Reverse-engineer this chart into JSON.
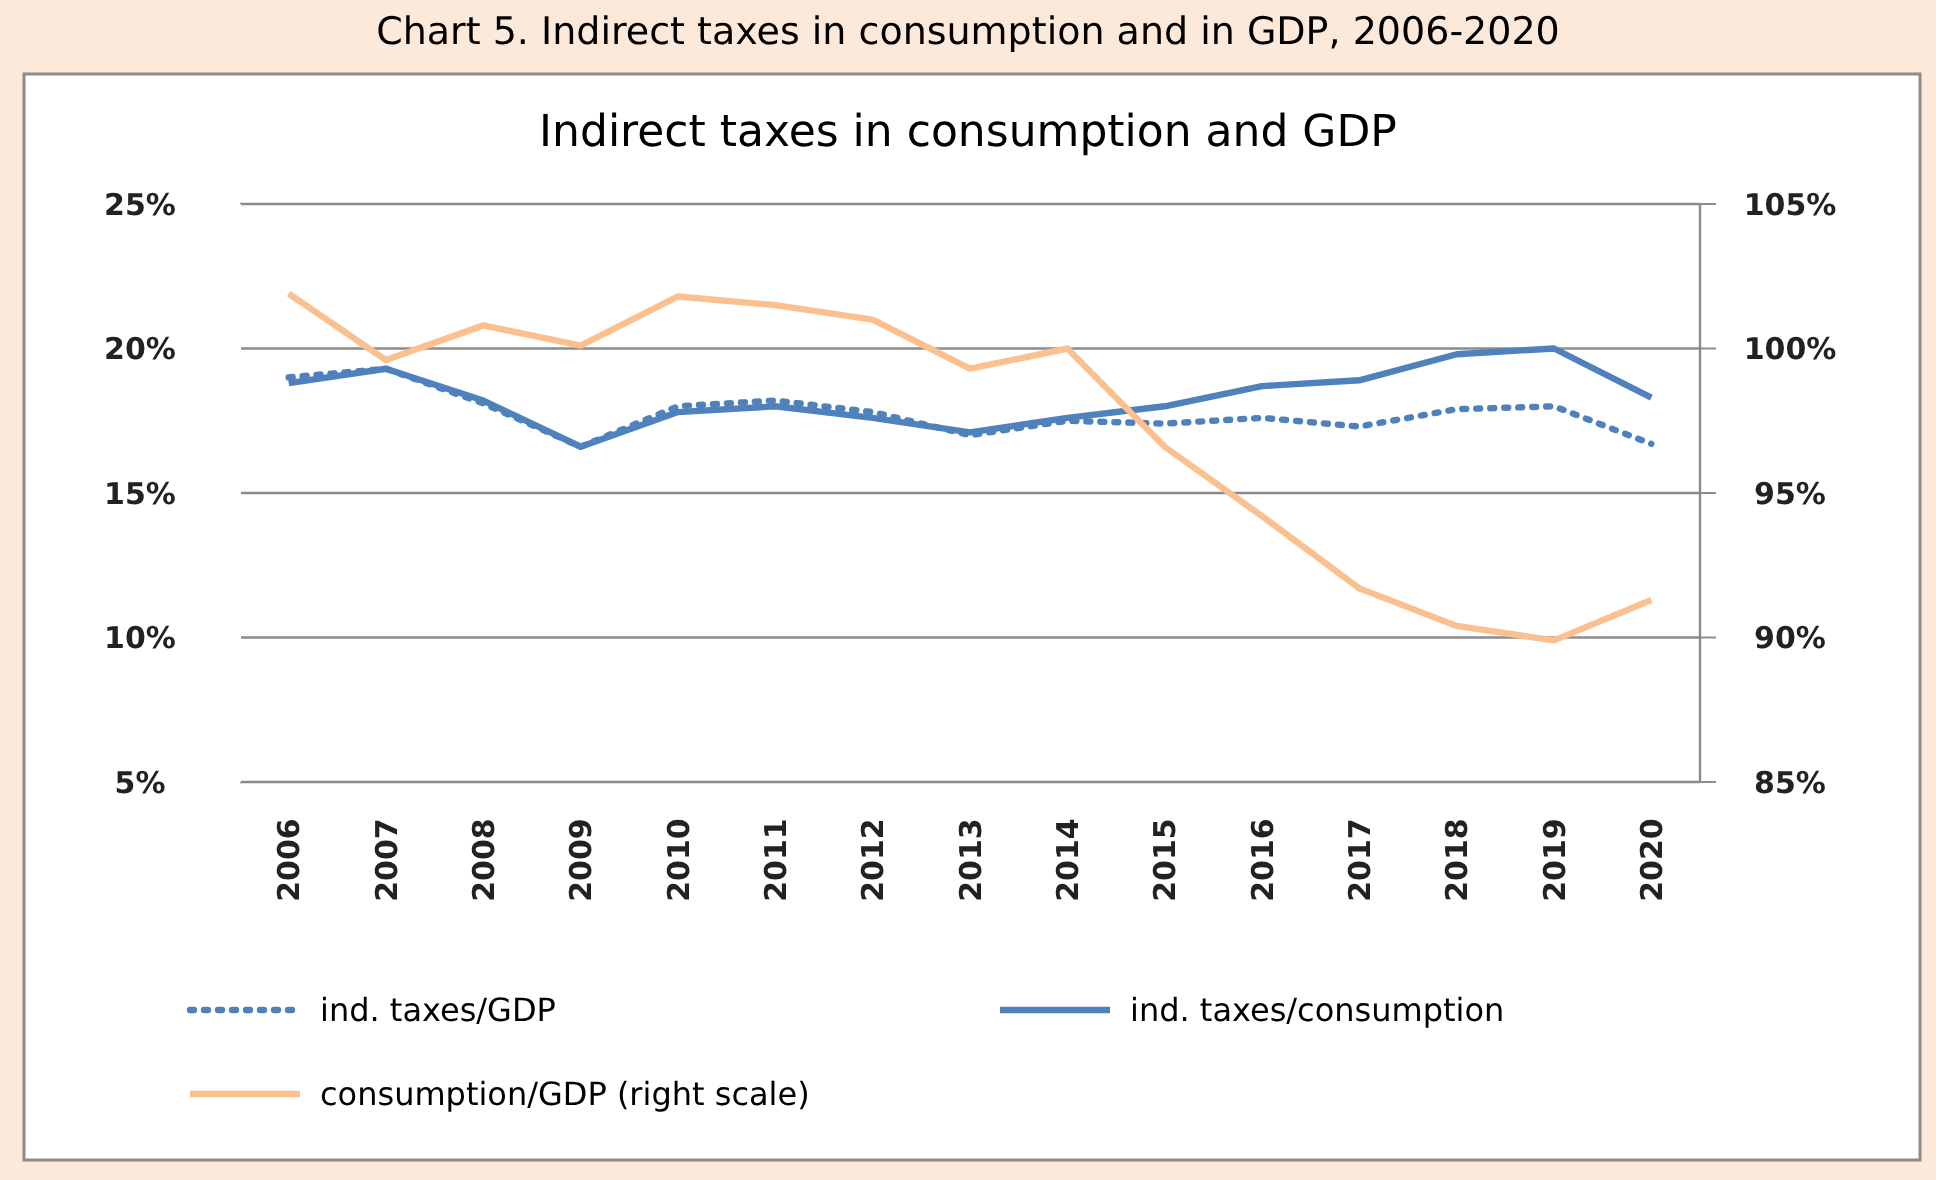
{
  "chart_data": {
    "type": "line",
    "title": "Indirect taxes in consumption and GDP",
    "subtitle": "Chart 5. Indirect taxes in consumption and in GDP, 2006-2020",
    "categories": [
      "2006",
      "2007",
      "2008",
      "2009",
      "2010",
      "2011",
      "2012",
      "2013",
      "2014",
      "2015",
      "2016",
      "2017",
      "2018",
      "2019",
      "2020"
    ],
    "series": [
      {
        "name": "ind. taxes/GDP",
        "color": "#4f81bd",
        "line_style": "dotted",
        "values": [
          19.0,
          19.3,
          18.1,
          16.6,
          18.0,
          18.2,
          17.8,
          17.0,
          17.5,
          17.4,
          17.6,
          17.3,
          17.9,
          18.0,
          16.7
        ]
      },
      {
        "name": "ind. taxes/consumption",
        "color": "#4f81bd",
        "line_style": "solid",
        "values": [
          18.8,
          19.3,
          18.2,
          16.6,
          17.8,
          18.0,
          17.6,
          17.1,
          17.6,
          18.0,
          18.7,
          18.9,
          19.8,
          20.0,
          18.3
        ]
      },
      {
        "name": "consumption/GDP (right scale)",
        "color": "#fac090",
        "line_style": "solid",
        "axis": "y2",
        "values": [
          101.9,
          99.6,
          100.8,
          100.1,
          101.8,
          101.5,
          101.0,
          99.3,
          100.0,
          96.6,
          94.2,
          91.7,
          90.4,
          89.9,
          91.3
        ]
      }
    ],
    "ylim": [
      5,
      25
    ],
    "yticks": [
      {
        "value": 5,
        "label": "5%"
      },
      {
        "value": 10,
        "label": "10%"
      },
      {
        "value": 15,
        "label": "15%"
      },
      {
        "value": 20,
        "label": "20%"
      },
      {
        "value": 25,
        "label": "25%"
      }
    ],
    "y2lim": [
      85,
      105
    ],
    "y2ticks": [
      {
        "value": 85,
        "label": "85%"
      },
      {
        "value": 90,
        "label": "90%"
      },
      {
        "value": 95,
        "label": "95%"
      },
      {
        "value": 100,
        "label": "100%"
      },
      {
        "value": 105,
        "label": "105%"
      }
    ],
    "grid": "y",
    "legend": "bottom",
    "marker": "none"
  }
}
